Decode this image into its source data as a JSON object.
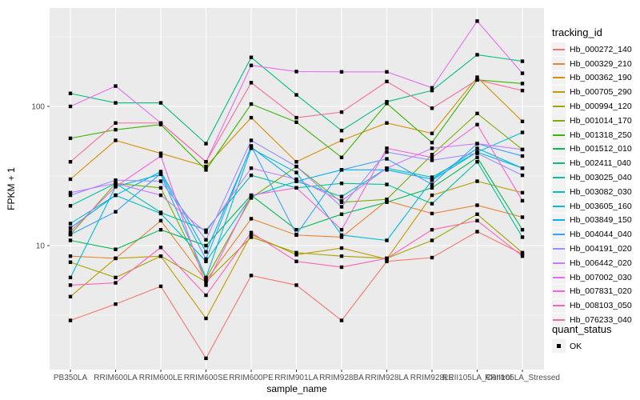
{
  "figure": {
    "background": "#FFFFFF",
    "panel_background": "#EBEBEB",
    "gridline_color": "#FFFFFF",
    "tick_mark_color": "#333333",
    "tick_label_color": "#4D4D4D",
    "marker_color": "#000000"
  },
  "legend": {
    "title": "tracking_id"
  },
  "quant_legend": {
    "title": "quant_status",
    "items": [
      {
        "label": "OK",
        "marker": "black-square"
      }
    ]
  },
  "chart_data": {
    "type": "line",
    "title": "",
    "xlabel": "sample_name",
    "ylabel": "FPKM + 1",
    "y_scale": "log10",
    "y_ticks": [
      10,
      100
    ],
    "y_minor_ticks": [
      3.162,
      31.623,
      316.228
    ],
    "ylim": [
      1.3,
      510
    ],
    "grid": true,
    "legend_position": "right",
    "marker": "black-square",
    "x_categories": [
      "PB350LA",
      "RRIM600LA",
      "RRIM600LE",
      "RRIM600SE",
      "RRIM600PE",
      "RRIM901LA",
      "RRIM928BA",
      "RRIM928LA",
      "RRIM928LE",
      "RRII105LA_Control",
      "RRII105LA_Stressed"
    ],
    "series": [
      {
        "name": "Hb_000272_140",
        "color": "#F8766D",
        "values": [
          2.9,
          3.8,
          5.1,
          1.55,
          6.1,
          5.2,
          2.9,
          7.7,
          8.2,
          12.6,
          8.7
        ]
      },
      {
        "name": "Hb_000329_210",
        "color": "#EA8331",
        "values": [
          8.4,
          8.1,
          15.1,
          5.6,
          15.6,
          11.9,
          11.5,
          21,
          17,
          19.5,
          16
        ]
      },
      {
        "name": "Hb_000362_190",
        "color": "#D89000",
        "values": [
          30,
          57,
          46,
          37,
          83,
          40,
          57,
          76,
          64,
          162,
          78
        ]
      },
      {
        "name": "Hb_000705_290",
        "color": "#C09B00",
        "values": [
          4.3,
          8.1,
          8.4,
          3.0,
          12,
          8.6,
          9.6,
          8.0,
          23,
          29,
          24
        ]
      },
      {
        "name": "Hb_000994_120",
        "color": "#A3A500",
        "values": [
          7.6,
          5.9,
          8.4,
          5.5,
          11.5,
          8.9,
          8.4,
          8.1,
          10.9,
          16.8,
          8.9
        ]
      },
      {
        "name": "Hb_001014_170",
        "color": "#7CAE00",
        "values": [
          12,
          28,
          26,
          5.8,
          22,
          37,
          20.5,
          21.5,
          45,
          89,
          49
        ]
      },
      {
        "name": "Hb_001318_250",
        "color": "#39B600",
        "values": [
          59,
          68,
          74,
          35,
          104,
          77,
          43,
          105,
          55,
          155,
          146
        ]
      },
      {
        "name": "Hb_001512_010",
        "color": "#00BB4E",
        "values": [
          10.9,
          9.4,
          13,
          10,
          23,
          13,
          16.8,
          20.5,
          26,
          43,
          13
        ]
      },
      {
        "name": "Hb_002411_040",
        "color": "#00BF7D",
        "values": [
          124,
          106,
          106,
          54,
          225,
          121,
          67,
          108,
          130,
          235,
          211
        ]
      },
      {
        "name": "Hb_003025_040",
        "color": "#00C1A3",
        "values": [
          19.3,
          28,
          17.3,
          12.9,
          32,
          26,
          28,
          27.5,
          20,
          40,
          11.5
        ]
      },
      {
        "name": "Hb_003082_030",
        "color": "#00BFC4",
        "values": [
          14.4,
          23,
          17,
          7.7,
          22.5,
          29,
          22.5,
          36,
          31,
          47,
          36
        ]
      },
      {
        "name": "Hb_003605_160",
        "color": "#00BBDC",
        "values": [
          5.9,
          26.5,
          32.5,
          5.9,
          50,
          33.5,
          11.9,
          10.9,
          29.5,
          47,
          65
        ]
      },
      {
        "name": "Hb_003849_150",
        "color": "#00B0F6",
        "values": [
          13.4,
          23,
          34,
          9.0,
          51,
          29,
          35,
          35,
          30,
          50,
          36
        ]
      },
      {
        "name": "Hb_004044_040",
        "color": "#35A2FF",
        "values": [
          12.0,
          17.5,
          33,
          8.0,
          52,
          12,
          35,
          42,
          27.5,
          54,
          44
        ]
      },
      {
        "name": "Hb_004191_020",
        "color": "#9590FF",
        "values": [
          23,
          29.5,
          29,
          11,
          57,
          37,
          19,
          47,
          41,
          46,
          32
        ]
      },
      {
        "name": "Hb_006442_020",
        "color": "#C77CFF",
        "values": [
          24,
          28,
          23,
          12.5,
          36,
          30,
          21,
          36,
          50,
          54,
          49
        ]
      },
      {
        "name": "Hb_007002_030",
        "color": "#E76BF3",
        "values": [
          100,
          140,
          76,
          40,
          197,
          178,
          177,
          177,
          136,
          410,
          173
        ]
      },
      {
        "name": "Hb_007831_020",
        "color": "#FA62DB",
        "values": [
          12.6,
          26.5,
          44,
          5.2,
          23,
          26,
          13,
          50,
          43,
          74,
          21
        ]
      },
      {
        "name": "Hb_008103_050",
        "color": "#FF62BC",
        "values": [
          5.2,
          5.4,
          9.7,
          4.4,
          12.4,
          7.7,
          7.0,
          8.1,
          13,
          15.1,
          8.4
        ]
      },
      {
        "name": "Hb_076233_040",
        "color": "#FF6A98",
        "values": [
          40,
          76,
          76,
          40,
          148,
          83,
          91,
          151,
          97,
          155,
          130
        ]
      }
    ]
  }
}
